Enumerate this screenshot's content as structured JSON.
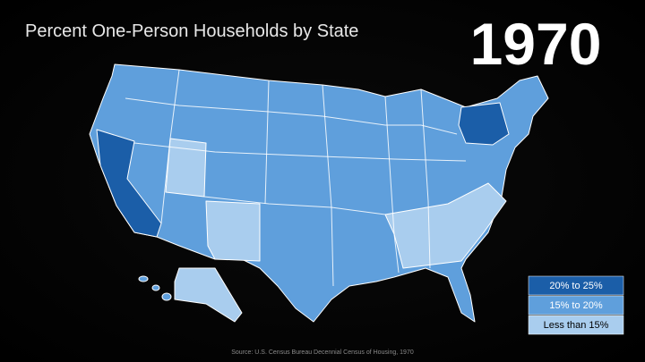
{
  "header": {
    "title": "Percent One-Person Households by State",
    "year": "1970"
  },
  "legend": {
    "items": [
      "20% to 25%",
      "15% to 20%",
      "Less than 15%"
    ]
  },
  "source": "Source: U.S. Census Bureau Decennial Census of Housing, 1970"
}
